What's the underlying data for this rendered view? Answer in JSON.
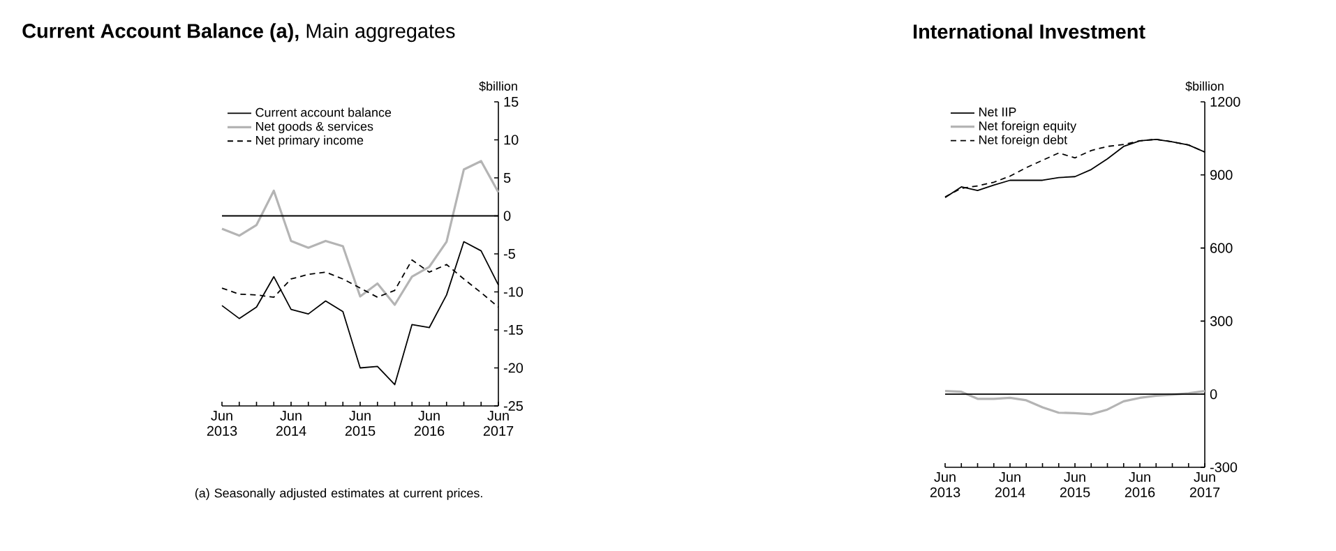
{
  "chart_data": [
    {
      "type": "line",
      "title": "**Current Account Balance (a),** Main aggregates",
      "ylabel": "$billion",
      "categories": [
        "Jun 2013",
        null,
        null,
        null,
        "Jun 2014",
        null,
        null,
        null,
        "Jun 2015",
        null,
        null,
        null,
        "Jun 2016",
        null,
        null,
        null,
        "Jun 2017"
      ],
      "series": [
        {
          "name": "Current account balance",
          "color": "#000000",
          "values": [
            -11.8,
            -13.5,
            -12,
            -8,
            -12.3,
            -12.9,
            -11.2,
            -12.6,
            -20,
            -19.8,
            -22.2,
            -14.3,
            -14.7,
            -10.4,
            -3.4,
            -4.6,
            -9.1
          ]
        },
        {
          "name": "Net goods & services",
          "color": "#b4b4b4",
          "values": [
            -1.7,
            -2.6,
            -1.2,
            3.3,
            -3.3,
            -4.2,
            -3.3,
            -4,
            -10.6,
            -8.9,
            -11.7,
            -8,
            -6.7,
            -3.4,
            6.1,
            7.2,
            3.1
          ]
        },
        {
          "name": "Net primary income",
          "color": "#000000",
          "line_style": "dashed",
          "values": [
            -9.5,
            -10.3,
            -10.4,
            -10.7,
            -8.3,
            -7.7,
            -7.4,
            -8.3,
            -9.5,
            -10.7,
            -9.8,
            -5.8,
            -7.4,
            -6.4,
            -8.3,
            -10.1,
            -12
          ]
        }
      ],
      "ylim": [
        -25,
        15
      ],
      "yticks": [
        -25,
        -20,
        -15,
        -10,
        -5,
        0,
        5,
        10,
        15
      ],
      "ref_lines": [
        {
          "axis": "y",
          "value": 0,
          "color": "#000000"
        }
      ],
      "legend": "top left",
      "annotations": [
        "(a) Seasonally adjusted estimates at current prices."
      ]
    },
    {
      "type": "line",
      "title": "International Investment",
      "ylabel": "$billion",
      "categories": [
        "Jun 2013",
        null,
        null,
        null,
        "Jun 2014",
        null,
        null,
        null,
        "Jun 2015",
        null,
        null,
        null,
        "Jun 2016",
        null,
        null,
        null,
        "Jun 2017"
      ],
      "series": [
        {
          "name": "Net IIP",
          "color": "#000000",
          "values": [
            807,
            851,
            836,
            858,
            878,
            878,
            878,
            889,
            893,
            922,
            966,
            1017,
            1040,
            1046,
            1036,
            1023,
            994
          ]
        },
        {
          "name": "Net foreign equity",
          "color": "#b4b4b4",
          "values": [
            13,
            10,
            -19,
            -19,
            -15,
            -25,
            -54,
            -76,
            -78,
            -82,
            -63,
            -29,
            -15,
            -6,
            -2,
            4,
            13
          ]
        },
        {
          "name": "Net foreign debt",
          "color": "#000000",
          "line_style": "dashed",
          "values": [
            810,
            845,
            855,
            870,
            895,
            930,
            960,
            990,
            970,
            1000,
            1017,
            1025,
            1040,
            1046,
            1036,
            1023,
            994
          ]
        }
      ],
      "ylim": [
        -300,
        1200
      ],
      "yticks": [
        -300,
        0,
        300,
        600,
        900,
        1200
      ],
      "ref_lines": [
        {
          "axis": "y",
          "value": 0,
          "color": "#000000"
        }
      ],
      "legend": "top left"
    }
  ]
}
